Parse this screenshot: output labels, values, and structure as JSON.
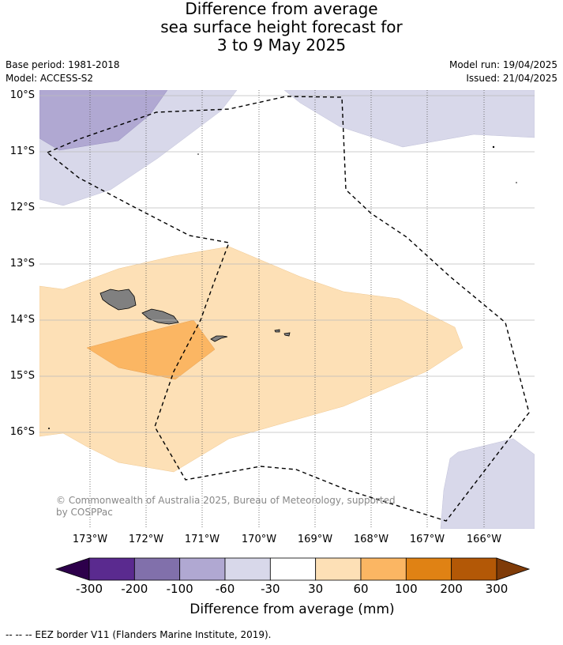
{
  "title": {
    "line1": "Difference from average",
    "line2": "sea surface height forecast for",
    "line3": "3 to 9 May 2025"
  },
  "meta": {
    "base_period": "Base period: 1981-2018",
    "model": "Model: ACCESS-S2",
    "model_run": "Model run: 19/04/2025",
    "issued": "Issued: 21/04/2025"
  },
  "map": {
    "lat_labels": [
      "10°S",
      "11°S",
      "12°S",
      "13°S",
      "14°S",
      "15°S",
      "16°S"
    ],
    "lon_labels": [
      "173°W",
      "172°W",
      "171°W",
      "170°W",
      "169°W",
      "168°W",
      "167°W",
      "166°W"
    ],
    "lat_range": [
      -17.8,
      -9.9
    ],
    "lon_range": [
      -173.9,
      -165.0
    ],
    "copyright": "© Commonwealth of Australia 2025, Bureau of Meteorology, supported by COSPPac",
    "colors": {
      "land": "#808080",
      "land_edge": "#000000",
      "neg_light": "#d8d8ea",
      "neg_med": "#b0a8d2",
      "pos_light": "#fde0b6",
      "pos_med": "#fbb663",
      "eez_line": "#000000"
    }
  },
  "colorbar": {
    "ticks": [
      "-300",
      "-200",
      "-100",
      "-60",
      "-30",
      "30",
      "60",
      "100",
      "200",
      "300"
    ],
    "under_color": "#2d004b",
    "over_color": "#7f3b08",
    "colors": [
      "#5a2a8f",
      "#8170ab",
      "#b0a8d2",
      "#d8d8ea",
      "#ffffff",
      "#fde0b6",
      "#fbb663",
      "#e08214",
      "#b35806"
    ],
    "label": "Difference from average (mm)"
  },
  "footnote": "--  --  -- EEZ border V11 (Flanders Marine Institute, 2019)."
}
